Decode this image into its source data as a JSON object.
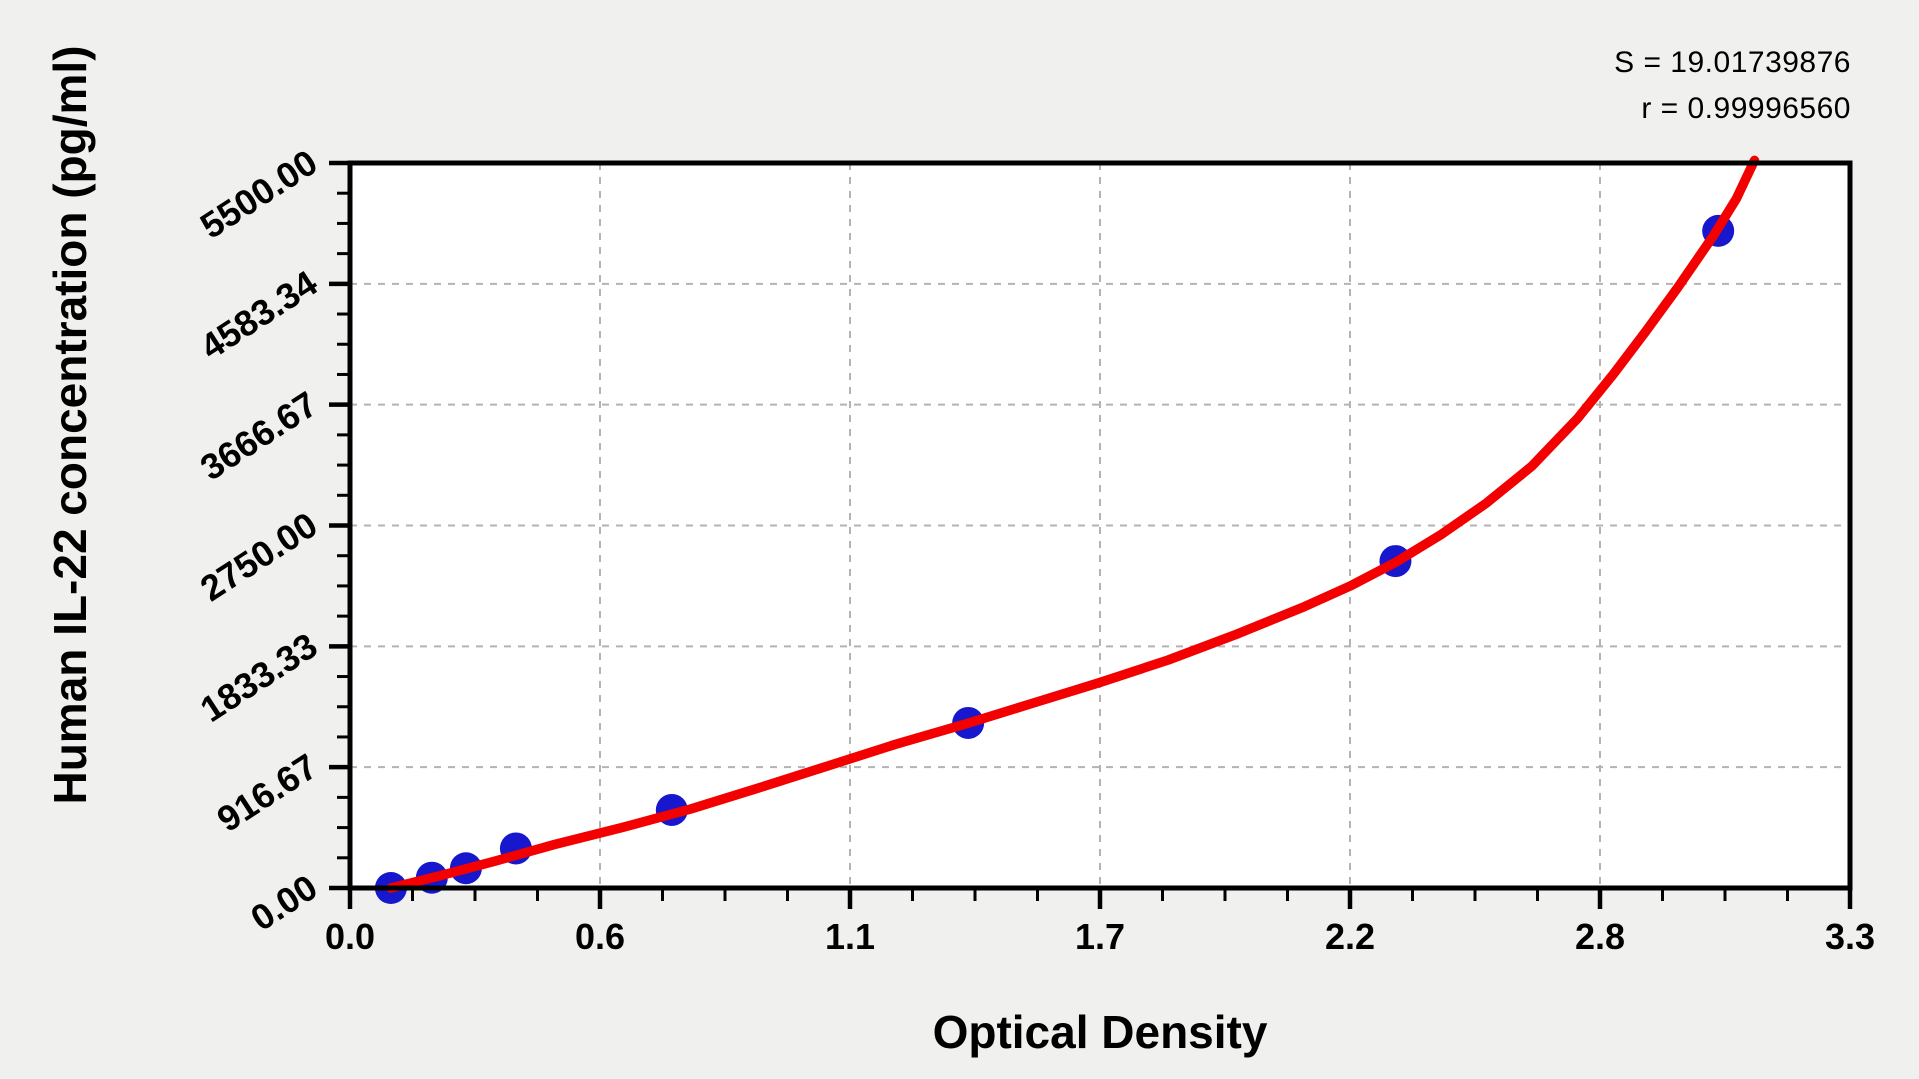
{
  "stats": {
    "s_label": "S = 19.01739876",
    "r_label": "r = 0.99996560"
  },
  "chart_data": {
    "type": "scatter",
    "title": "",
    "xlabel": "Optical Density",
    "ylabel": "Human IL-22 concentration (pg/ml)",
    "xlim": [
      0,
      3.3
    ],
    "ylim": [
      0,
      5500
    ],
    "grid": "dashed gridlines at major ticks, both axes",
    "legend": "none",
    "x_ticks": {
      "values": [
        0,
        0.55,
        1.1,
        1.65,
        2.2,
        2.75,
        3.3
      ],
      "labels": [
        "0.0",
        "0.6",
        "1.1",
        "1.7",
        "2.2",
        "2.8",
        "3.3"
      ]
    },
    "y_ticks": {
      "values": [
        0,
        916.67,
        1833.33,
        2750.0,
        3666.67,
        4583.34,
        5500.0
      ],
      "labels": [
        "0.00",
        "916.67",
        "1833.33",
        "2750.00",
        "3666.67",
        "4583.34",
        "5500.00"
      ]
    },
    "minor_divisions_per_major": 4,
    "fit_stats": {
      "S": "19.01739876",
      "r": "0.99996560"
    },
    "series": [
      {
        "name": "standard-points",
        "type": "scatter",
        "marker": "circle",
        "color": "#1717cd",
        "points_od": [
          0.09,
          0.18,
          0.255,
          0.365,
          0.708,
          1.36,
          2.3,
          3.01
        ],
        "points_conc": [
          0,
          78,
          150,
          300,
          592,
          1252,
          2480,
          4985
        ]
      },
      {
        "name": "fitted-curve",
        "type": "line",
        "color": "#f30000",
        "points_od": [
          0.09,
          0.2,
          0.32,
          0.45,
          0.6,
          0.75,
          0.9,
          1.05,
          1.2,
          1.36,
          1.5,
          1.65,
          1.8,
          1.95,
          2.1,
          2.2,
          2.3,
          2.4,
          2.5,
          2.6,
          2.7,
          2.78,
          2.85,
          2.92,
          3.0,
          3.05,
          3.09
        ],
        "points_conc": [
          0,
          95,
          205,
          330,
          460,
          600,
          760,
          925,
          1090,
          1250,
          1400,
          1560,
          1730,
          1925,
          2135,
          2290,
          2470,
          2680,
          2920,
          3200,
          3560,
          3900,
          4220,
          4550,
          4950,
          5230,
          5520
        ]
      }
    ],
    "colors": {
      "point": "#1717cd",
      "curve": "#f30000",
      "grid": "#b3b3b3",
      "axis": "#000000",
      "plot_bg": "#ffffff",
      "fig_bg": "#f0f0ee"
    }
  }
}
